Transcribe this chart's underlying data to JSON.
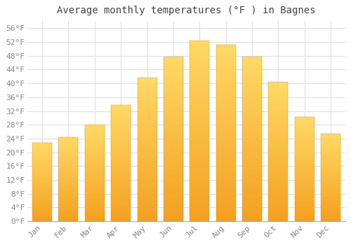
{
  "title": "Average monthly temperatures (°F ) in Bagnes",
  "months": [
    "Jan",
    "Feb",
    "Mar",
    "Apr",
    "May",
    "Jun",
    "Jul",
    "Aug",
    "Sep",
    "Oct",
    "Nov",
    "Dec"
  ],
  "values": [
    22.8,
    24.3,
    28.1,
    33.8,
    41.7,
    47.8,
    52.5,
    51.1,
    47.8,
    40.5,
    30.2,
    25.5
  ],
  "bar_color_top": "#FFD966",
  "bar_color_bottom": "#F4A020",
  "ylim": [
    0,
    58
  ],
  "yticks": [
    0,
    4,
    8,
    12,
    16,
    20,
    24,
    28,
    32,
    36,
    40,
    44,
    48,
    52,
    56
  ],
  "ytick_labels": [
    "0°F",
    "4°F",
    "8°F",
    "12°F",
    "16°F",
    "20°F",
    "24°F",
    "28°F",
    "32°F",
    "36°F",
    "40°F",
    "44°F",
    "48°F",
    "52°F",
    "56°F"
  ],
  "bg_color": "#ffffff",
  "grid_color": "#e0e0e0",
  "title_fontsize": 10,
  "tick_fontsize": 8,
  "tick_color": "#888888"
}
